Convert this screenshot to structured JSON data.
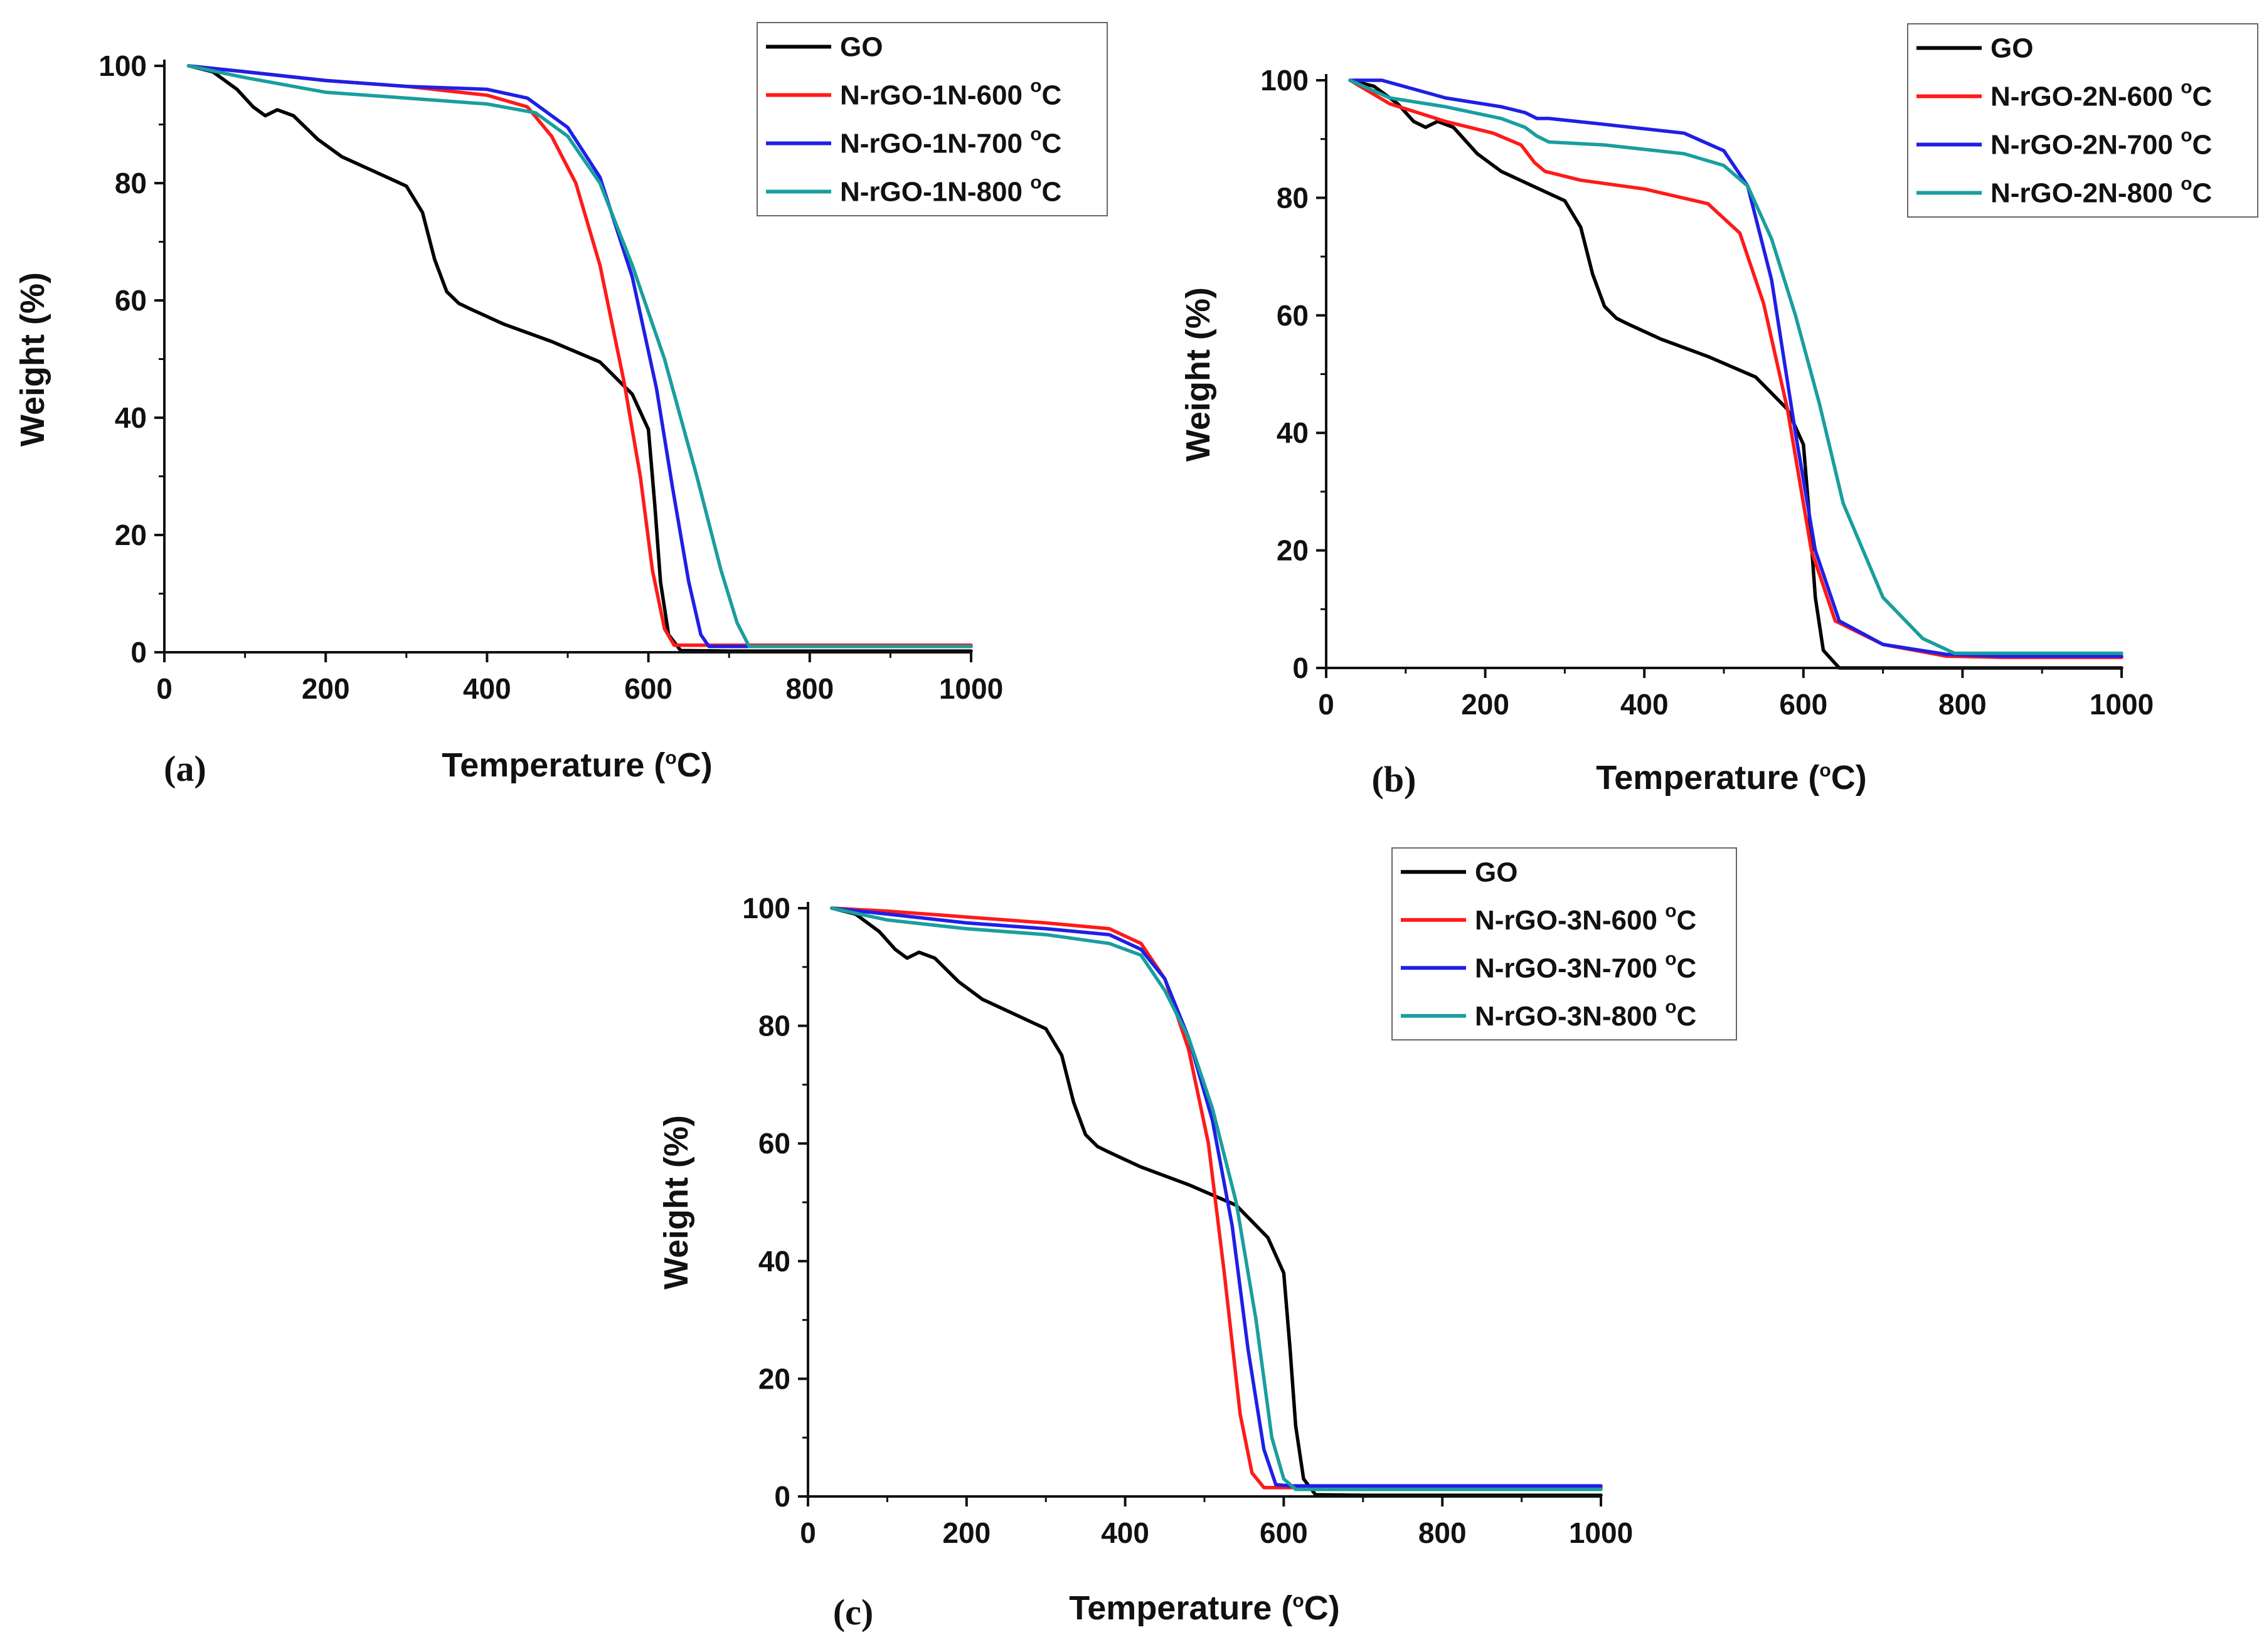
{
  "chart_data": [
    {
      "panel": "(a)",
      "type": "line",
      "xlabel": "Temperature (°C)",
      "ylabel": "Weight (%)",
      "xlim": [
        0,
        1000
      ],
      "ylim": [
        0,
        100
      ],
      "xticks": [
        "0",
        "200",
        "400",
        "600",
        "800",
        "1000"
      ],
      "yticks": [
        "0",
        "20",
        "40",
        "60",
        "80",
        "100"
      ],
      "legend_position": "top-right",
      "series": [
        {
          "name": "GO",
          "color": "#000000",
          "x": [
            30,
            60,
            90,
            110,
            125,
            140,
            160,
            190,
            220,
            260,
            300,
            320,
            335,
            350,
            365,
            380,
            420,
            480,
            540,
            580,
            600,
            608,
            615,
            625,
            640,
            700,
            850,
            1000
          ],
          "y": [
            100,
            99,
            96,
            93,
            91.5,
            92.5,
            91.5,
            87.5,
            84.5,
            82,
            79.5,
            75,
            67,
            61.5,
            59.5,
            58.5,
            56,
            53,
            49.5,
            44,
            38,
            25,
            12,
            3,
            0.3,
            0.2,
            0.2,
            0.2
          ]
        },
        {
          "name": "N-rGO-1N-600 °C",
          "color": "#ff1a1a",
          "x": [
            30,
            100,
            200,
            300,
            400,
            450,
            480,
            510,
            540,
            570,
            590,
            605,
            620,
            632,
            650,
            800,
            1000
          ],
          "y": [
            100,
            99,
            97.5,
            96.5,
            95,
            93,
            88,
            80,
            66,
            46,
            30,
            14,
            4,
            1.2,
            1.2,
            1.2,
            1.2
          ]
        },
        {
          "name": "N-rGO-1N-700 °C",
          "color": "#1f1fe6",
          "x": [
            30,
            100,
            200,
            300,
            400,
            450,
            500,
            540,
            580,
            610,
            630,
            650,
            665,
            675,
            800,
            1000
          ],
          "y": [
            100,
            99,
            97.5,
            96.5,
            96,
            94.5,
            89.5,
            81,
            64,
            45,
            28,
            12,
            3,
            1,
            1,
            1
          ]
        },
        {
          "name": "N-rGO-1N-800 °C",
          "color": "#1a9e9e",
          "x": [
            30,
            100,
            200,
            300,
            400,
            460,
            500,
            540,
            580,
            620,
            660,
            690,
            710,
            725,
            800,
            1000
          ],
          "y": [
            100,
            98,
            95.5,
            94.5,
            93.5,
            92,
            88,
            80,
            66,
            50,
            30,
            14,
            5,
            1,
            1,
            1
          ]
        }
      ]
    },
    {
      "panel": "(b)",
      "type": "line",
      "xlabel": "Temperature (°C)",
      "ylabel": "Weight (%)",
      "xlim": [
        0,
        1000
      ],
      "ylim": [
        0,
        100
      ],
      "xticks": [
        "0",
        "200",
        "400",
        "600",
        "800",
        "1000"
      ],
      "yticks": [
        "0",
        "20",
        "40",
        "60",
        "80",
        "100"
      ],
      "legend_position": "top-right",
      "series": [
        {
          "name": "GO",
          "color": "#000000",
          "x": [
            30,
            60,
            90,
            110,
            125,
            140,
            160,
            190,
            220,
            260,
            300,
            320,
            335,
            350,
            365,
            380,
            420,
            480,
            540,
            580,
            600,
            608,
            615,
            625,
            645,
            700,
            850,
            1000
          ],
          "y": [
            100,
            99,
            96,
            93,
            92,
            93,
            92,
            87.5,
            84.5,
            82,
            79.5,
            75,
            67,
            61.5,
            59.5,
            58.5,
            56,
            53,
            49.5,
            44,
            38,
            25,
            12,
            3,
            0,
            0,
            0,
            0
          ]
        },
        {
          "name": "N-rGO-2N-600 °C",
          "color": "#ff1a1a",
          "x": [
            30,
            80,
            150,
            210,
            245,
            262,
            275,
            320,
            400,
            480,
            520,
            550,
            580,
            610,
            640,
            700,
            780,
            850,
            1000
          ],
          "y": [
            100,
            96,
            93,
            91,
            89,
            86,
            84.5,
            83,
            81.5,
            79,
            74,
            62,
            44,
            20,
            8,
            4,
            2,
            1.8,
            1.8
          ]
        },
        {
          "name": "N-rGO-2N-700 °C",
          "color": "#1f1fe6",
          "x": [
            30,
            70,
            150,
            220,
            250,
            265,
            280,
            350,
            450,
            500,
            530,
            560,
            590,
            615,
            645,
            700,
            780,
            850,
            1000
          ],
          "y": [
            100,
            100,
            97,
            95.5,
            94.5,
            93.5,
            93.5,
            92.5,
            91,
            88,
            82,
            66,
            40,
            20,
            8,
            4,
            2.3,
            2,
            2
          ]
        },
        {
          "name": "N-rGO-2N-800 °C",
          "color": "#1a9e9e",
          "x": [
            30,
            80,
            150,
            220,
            250,
            265,
            280,
            350,
            450,
            500,
            530,
            560,
            590,
            620,
            650,
            700,
            750,
            790,
            850,
            1000
          ],
          "y": [
            100,
            97,
            95.5,
            93.5,
            92,
            90.5,
            89.5,
            89,
            87.5,
            85.5,
            82,
            73,
            60,
            45,
            28,
            12,
            5,
            2.5,
            2.5,
            2.5
          ]
        }
      ]
    },
    {
      "panel": "(c)",
      "type": "line",
      "xlabel": "Temperature (°C)",
      "ylabel": "Weight (%)",
      "xlim": [
        0,
        1000
      ],
      "ylim": [
        0,
        100
      ],
      "xticks": [
        "0",
        "200",
        "400",
        "600",
        "800",
        "1000"
      ],
      "yticks": [
        "0",
        "20",
        "40",
        "60",
        "80",
        "100"
      ],
      "legend_position": "top-right",
      "series": [
        {
          "name": "GO",
          "color": "#000000",
          "x": [
            30,
            60,
            90,
            110,
            125,
            140,
            160,
            190,
            220,
            260,
            300,
            320,
            335,
            350,
            365,
            380,
            420,
            480,
            540,
            580,
            600,
            608,
            615,
            625,
            640,
            700,
            850,
            1000
          ],
          "y": [
            100,
            99,
            96,
            93,
            91.5,
            92.5,
            91.5,
            87.5,
            84.5,
            82,
            79.5,
            75,
            67,
            61.5,
            59.5,
            58.5,
            56,
            53,
            49.5,
            44,
            38,
            25,
            12,
            3,
            0.3,
            0.2,
            0.2,
            0.2
          ]
        },
        {
          "name": "N-rGO-3N-600 °C",
          "color": "#ff1a1a",
          "x": [
            30,
            100,
            200,
            300,
            380,
            420,
            450,
            480,
            505,
            525,
            545,
            560,
            575,
            600,
            800,
            1000
          ],
          "y": [
            100,
            99.5,
            98.5,
            97.5,
            96.5,
            94,
            88,
            76,
            60,
            38,
            14,
            4,
            1.5,
            1.5,
            1.5,
            1.5
          ]
        },
        {
          "name": "N-rGO-3N-700 °C",
          "color": "#1f1fe6",
          "x": [
            30,
            100,
            200,
            300,
            380,
            420,
            450,
            480,
            510,
            535,
            555,
            575,
            590,
            610,
            800,
            1000
          ],
          "y": [
            100,
            99,
            97.5,
            96.5,
            95.5,
            93,
            88,
            78,
            64,
            46,
            25,
            8,
            2,
            1.8,
            1.8,
            1.8
          ]
        },
        {
          "name": "N-rGO-3N-800 °C",
          "color": "#1a9e9e",
          "x": [
            30,
            100,
            200,
            300,
            380,
            420,
            450,
            480,
            510,
            540,
            565,
            585,
            600,
            615,
            800,
            1000
          ],
          "y": [
            100,
            98,
            96.5,
            95.5,
            94,
            92,
            86,
            78,
            66,
            50,
            30,
            10,
            3,
            1.2,
            1.2,
            1.2
          ]
        }
      ]
    }
  ]
}
